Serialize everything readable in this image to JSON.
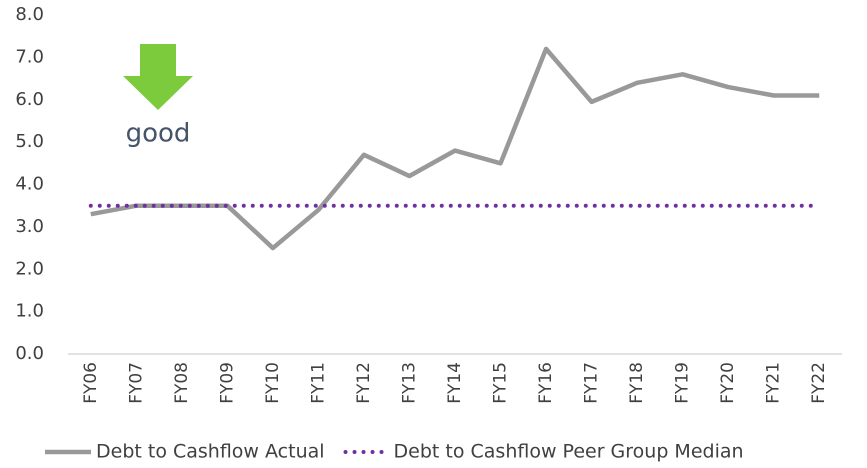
{
  "chart_data": {
    "type": "line",
    "annotation": "good",
    "categories": [
      "FY06",
      "FY07",
      "FY08",
      "FY09",
      "FY10",
      "FY11",
      "FY12",
      "FY13",
      "FY14",
      "FY15",
      "FY16",
      "FY17",
      "FY18",
      "FY19",
      "FY20",
      "FY21",
      "FY22"
    ],
    "series": [
      {
        "name": "Debt to Cashflow Actual",
        "color": "#999999",
        "style": "solid",
        "values": [
          3.3,
          3.5,
          3.5,
          3.5,
          2.5,
          3.4,
          4.7,
          4.2,
          4.8,
          4.5,
          7.2,
          5.95,
          6.4,
          6.6,
          6.3,
          6.1,
          6.1
        ]
      },
      {
        "name": "Debt to Cashflow Peer Group Median",
        "color": "#7030a0",
        "style": "dotted",
        "values": [
          3.5,
          3.5,
          3.5,
          3.5,
          3.5,
          3.5,
          3.5,
          3.5,
          3.5,
          3.5,
          3.5,
          3.5,
          3.5,
          3.5,
          3.5,
          3.5,
          3.5
        ]
      }
    ],
    "ylim": [
      0,
      8
    ],
    "yticks": [
      {
        "value": 0,
        "label": "0.0"
      },
      {
        "value": 1,
        "label": "1.0"
      },
      {
        "value": 2,
        "label": "2.0"
      },
      {
        "value": 3,
        "label": "3.0"
      },
      {
        "value": 4,
        "label": "4.0"
      },
      {
        "value": 5,
        "label": "5.0"
      },
      {
        "value": 6,
        "label": "6.0"
      },
      {
        "value": 7,
        "label": "7.0"
      },
      {
        "value": 8,
        "label": "8.0"
      }
    ],
    "grid": false,
    "legend": "bottom"
  }
}
